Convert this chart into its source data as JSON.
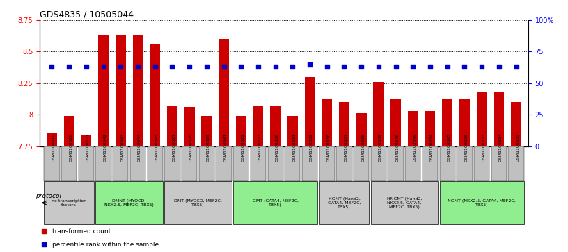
{
  "title": "GDS4835 / 10505044",
  "samples": [
    "GSM1100519",
    "GSM1100520",
    "GSM1100521",
    "GSM1100542",
    "GSM1100543",
    "GSM1100544",
    "GSM1100545",
    "GSM1100527",
    "GSM1100528",
    "GSM1100529",
    "GSM1100541",
    "GSM1100522",
    "GSM1100523",
    "GSM1100530",
    "GSM1100531",
    "GSM1100532",
    "GSM1100536",
    "GSM1100537",
    "GSM1100538",
    "GSM1100539",
    "GSM1100540",
    "GSM1102649",
    "GSM1100524",
    "GSM1100525",
    "GSM1100526",
    "GSM1100533",
    "GSM1100534",
    "GSM1100535"
  ],
  "bar_values": [
    7.85,
    7.99,
    7.84,
    8.63,
    8.63,
    8.63,
    8.56,
    8.07,
    8.06,
    7.99,
    8.6,
    7.99,
    8.07,
    8.07,
    7.99,
    8.3,
    8.13,
    8.1,
    8.01,
    8.26,
    8.13,
    8.03,
    8.03,
    8.13,
    8.13,
    8.18,
    8.18,
    8.1
  ],
  "percentile_values": [
    63,
    63,
    63,
    63,
    63,
    63,
    63,
    63,
    63,
    63,
    63,
    63,
    63,
    63,
    63,
    65,
    63,
    63,
    63,
    63,
    63,
    63,
    63,
    63,
    63,
    63,
    63,
    63
  ],
  "ylim_left": [
    7.75,
    8.75
  ],
  "ylim_right": [
    0,
    100
  ],
  "yticks_left": [
    7.75,
    8.0,
    8.25,
    8.5,
    8.75
  ],
  "ytick_labels_left": [
    "7.75",
    "8",
    "8.25",
    "8.5",
    "8.75"
  ],
  "yticks_right": [
    0,
    25,
    50,
    75,
    100
  ],
  "ytick_labels_right": [
    "0",
    "25",
    "50",
    "75",
    "100%"
  ],
  "bar_color": "#cc0000",
  "dot_color": "#0000cc",
  "grid_color": "black",
  "bg_color": "#ffffff",
  "xtick_bg_color": "#c0c0c0",
  "protocol_groups": [
    {
      "label": "no transcription\nfactors",
      "start": 0,
      "end": 2,
      "color": "#c8c8c8"
    },
    {
      "label": "DMNT (MYOCD,\nNKX2.5, MEF2C, TBX5)",
      "start": 3,
      "end": 6,
      "color": "#90ee90"
    },
    {
      "label": "DMT (MYOCD, MEF2C,\nTBX5)",
      "start": 7,
      "end": 10,
      "color": "#c8c8c8"
    },
    {
      "label": "GMT (GATA4, MEF2C,\nTBX5)",
      "start": 11,
      "end": 15,
      "color": "#90ee90"
    },
    {
      "label": "HGMT (Hand2,\nGATA4, MEF2C,\nTBX5)",
      "start": 16,
      "end": 18,
      "color": "#c8c8c8"
    },
    {
      "label": "HNGMT (Hand2,\nNKX2.5, GATA4,\nMEF2C, TBX5)",
      "start": 19,
      "end": 22,
      "color": "#c8c8c8"
    },
    {
      "label": "NGMT (NKX2.5, GATA4, MEF2C,\nTBX5)",
      "start": 23,
      "end": 27,
      "color": "#90ee90"
    }
  ]
}
